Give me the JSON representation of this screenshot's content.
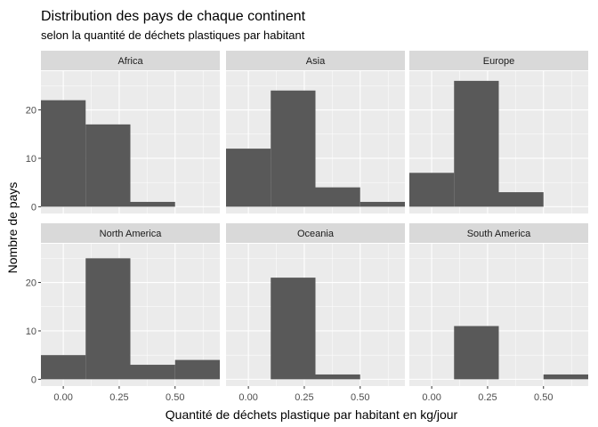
{
  "chart_data": {
    "type": "bar",
    "title": "Distribution des pays de chaque continent",
    "subtitle": "selon la quantité de déchets plastiques par habitant",
    "xlabel": "Quantité de déchets plastique par habitant en kg/jour",
    "ylabel": "Nombre de pays",
    "xlim": [
      -0.1,
      0.7
    ],
    "ylim": [
      0,
      28
    ],
    "x_ticks": [
      0.0,
      0.25,
      0.5
    ],
    "x_tick_labels": [
      "0.00",
      "0.25",
      "0.50"
    ],
    "y_ticks_top": [
      0,
      10,
      20
    ],
    "y_ticks_bottom": [
      0,
      10,
      20
    ],
    "bin_edges": [
      -0.1,
      0.1,
      0.3,
      0.5,
      0.7
    ],
    "bar_color": "#595959",
    "panel_background": "#ebebeb",
    "strip_background": "#d9d9d9",
    "grid": true,
    "facets": [
      {
        "name": "Africa",
        "counts": [
          22,
          17,
          1,
          0
        ]
      },
      {
        "name": "Asia",
        "counts": [
          12,
          24,
          4,
          1
        ]
      },
      {
        "name": "Europe",
        "counts": [
          7,
          26,
          3,
          0
        ]
      },
      {
        "name": "North America",
        "counts": [
          5,
          25,
          3,
          4
        ]
      },
      {
        "name": "Oceania",
        "counts": [
          0,
          21,
          1,
          0
        ]
      },
      {
        "name": "South America",
        "counts": [
          0,
          11,
          0,
          1
        ]
      }
    ]
  }
}
